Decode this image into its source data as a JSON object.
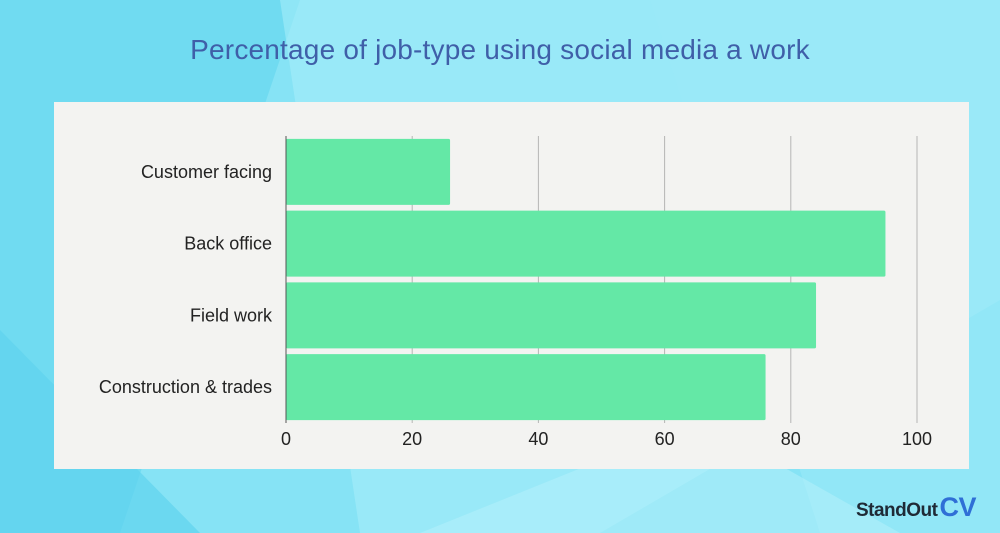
{
  "chart_data": {
    "type": "bar",
    "orientation": "horizontal",
    "title": "Percentage of job-type using social media a work",
    "categories": [
      "Customer facing",
      "Back office",
      "Field work",
      "Construction & trades"
    ],
    "values": [
      26,
      95,
      84,
      76
    ],
    "xlim": [
      0,
      100
    ],
    "xticks": [
      0,
      20,
      40,
      60,
      80,
      100
    ],
    "grid": "vertical",
    "bar_color": "#64e8a6"
  },
  "brand": {
    "part1": "StandOut",
    "part2": "CV"
  },
  "colors": {
    "title": "#3f5fa8",
    "panel": "#f3f3f1",
    "grid": "#b5b5b5",
    "axis": "#555555"
  }
}
